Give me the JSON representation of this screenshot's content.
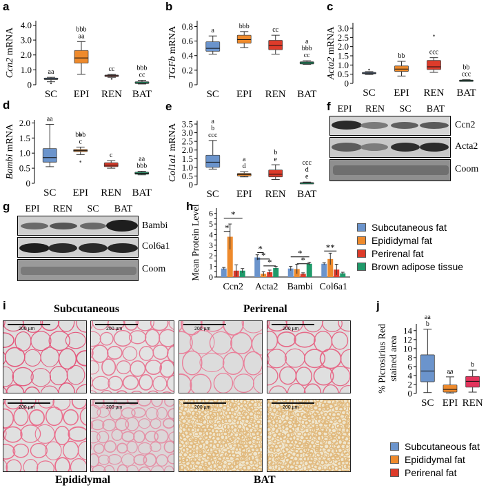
{
  "panel_letters": [
    "a",
    "b",
    "c",
    "d",
    "e",
    "f",
    "g",
    "h",
    "i",
    "j"
  ],
  "colors": {
    "sc": "#6b94cc",
    "epi": "#ee8a2c",
    "ren": "#dd3b2a",
    "bat": "#1f9a6a",
    "ren_j": "#e3345c"
  },
  "legend_h": [
    "Subcutaneous fat",
    "Epididymal fat",
    "Perirenal fat",
    "Brown adipose tissue"
  ],
  "legend_j": [
    "Subcutaneous fat",
    "Epididymal fat",
    "Perirenal fat"
  ],
  "blot_f": {
    "lanes": [
      "EPI",
      "REN",
      "SC",
      "BAT"
    ],
    "rows": [
      "Ccn2",
      "Acta2",
      "Coom"
    ]
  },
  "blot_g": {
    "lanes": [
      "EPI",
      "REN",
      "SC",
      "BAT"
    ],
    "rows": [
      "Bambi",
      "Col6a1",
      "Coom"
    ]
  },
  "histology": {
    "subcutaneous": "Subcutaneous",
    "perirenal": "Perirenal",
    "epididymal": "Epididymal",
    "bat": "BAT",
    "scale": "200 µm"
  },
  "chart_data": [
    {
      "id": "a",
      "type": "box",
      "ylabel_gene": "Ccn2",
      "ylabel_suffix": " mRNA",
      "categories": [
        "SC",
        "EPI",
        "REN",
        "BAT"
      ],
      "yticks": [
        0,
        1.0,
        2.0,
        3.0,
        4.0
      ],
      "tick_labels": [
        "0",
        "1.0",
        "2.0",
        "3.0",
        "4.0"
      ],
      "ylim": [
        0,
        4.3
      ],
      "boxes": [
        {
          "whislo": 0.2,
          "q1": 0.35,
          "med": 0.4,
          "q3": 0.45,
          "whishi": 0.5,
          "fliers": [
            0.1
          ]
        },
        {
          "whislo": 0.7,
          "q1": 1.45,
          "med": 1.8,
          "q3": 2.3,
          "whishi": 2.9,
          "fliers": []
        },
        {
          "whislo": 0.5,
          "q1": 0.55,
          "med": 0.6,
          "q3": 0.65,
          "whishi": 0.7,
          "fliers": [
            0.4
          ]
        },
        {
          "whislo": 0.05,
          "q1": 0.08,
          "med": 0.12,
          "q3": 0.2,
          "whishi": 0.3,
          "fliers": []
        }
      ],
      "annotations": [
        [
          "aa"
        ],
        [
          "bbb",
          "aa"
        ],
        [
          "cc"
        ],
        [
          "bbb",
          "cc"
        ]
      ]
    },
    {
      "id": "b",
      "type": "box",
      "ylabel_gene": "TGFb",
      "ylabel_suffix": " mRNA",
      "categories": [
        "SC",
        "EPI",
        "REN",
        "BAT"
      ],
      "yticks": [
        0,
        0.2,
        0.4,
        0.6,
        0.8
      ],
      "tick_labels": [
        "0",
        "0.2",
        "0.4",
        "0.6",
        "0.8"
      ],
      "ylim": [
        0,
        0.88
      ],
      "boxes": [
        {
          "whislo": 0.42,
          "q1": 0.46,
          "med": 0.5,
          "q3": 0.59,
          "whishi": 0.67,
          "fliers": []
        },
        {
          "whislo": 0.51,
          "q1": 0.57,
          "med": 0.62,
          "q3": 0.68,
          "whishi": 0.73,
          "fliers": []
        },
        {
          "whislo": 0.42,
          "q1": 0.48,
          "med": 0.54,
          "q3": 0.61,
          "whishi": 0.68,
          "fliers": []
        },
        {
          "whislo": 0.28,
          "q1": 0.285,
          "med": 0.3,
          "q3": 0.315,
          "whishi": 0.33,
          "fliers": []
        }
      ],
      "annotations": [
        [
          "a"
        ],
        [
          "bbb"
        ],
        [
          "cc"
        ],
        [
          "a",
          "bbb",
          "cc"
        ]
      ]
    },
    {
      "id": "c",
      "type": "box",
      "ylabel_gene": "Acta2",
      "ylabel_suffix": " mRNA",
      "categories": [
        "SC",
        "EPI",
        "REN",
        "BAT"
      ],
      "yticks": [
        0,
        0.5,
        1.0,
        1.5,
        2.0,
        2.5,
        3.0
      ],
      "tick_labels": [
        "0",
        "0.5",
        "1.0",
        "1.5",
        "2.0",
        "2.5",
        "3.0"
      ],
      "ylim": [
        0,
        3.3
      ],
      "boxes": [
        {
          "whislo": 0.48,
          "q1": 0.52,
          "med": 0.56,
          "q3": 0.6,
          "whishi": 0.64,
          "fliers": [
            0.75
          ]
        },
        {
          "whislo": 0.4,
          "q1": 0.65,
          "med": 0.78,
          "q3": 0.95,
          "whishi": 1.2,
          "fliers": []
        },
        {
          "whislo": 0.6,
          "q1": 0.75,
          "med": 0.9,
          "q3": 1.25,
          "whishi": 1.4,
          "fliers": [
            2.6
          ]
        },
        {
          "whislo": 0.12,
          "q1": 0.14,
          "med": 0.16,
          "q3": 0.18,
          "whishi": 0.2,
          "fliers": []
        }
      ],
      "annotations": [
        [],
        [
          "bb"
        ],
        [
          "ccc"
        ],
        [
          "bb",
          "ccc"
        ]
      ]
    },
    {
      "id": "d",
      "type": "box",
      "ylabel_gene": "Bambi",
      "ylabel_suffix": " mRNA",
      "categories": [
        "SC",
        "EPI",
        "REN",
        "BAT"
      ],
      "yticks": [
        0,
        0.5,
        1.0,
        1.5,
        2.0
      ],
      "tick_labels": [
        "0",
        "0.5",
        "1.0",
        "1.5",
        "2.0"
      ],
      "ylim": [
        0,
        2.1
      ],
      "boxes": [
        {
          "whislo": 0.55,
          "q1": 0.7,
          "med": 0.85,
          "q3": 1.15,
          "whishi": 1.95,
          "fliers": []
        },
        {
          "whislo": 0.95,
          "q1": 1.05,
          "med": 1.08,
          "q3": 1.12,
          "whishi": 1.2,
          "fliers": [
            0.72,
            1.6
          ]
        },
        {
          "whislo": 0.5,
          "q1": 0.55,
          "med": 0.6,
          "q3": 0.68,
          "whishi": 0.75,
          "fliers": []
        },
        {
          "whislo": 0.28,
          "q1": 0.3,
          "med": 0.33,
          "q3": 0.37,
          "whishi": 0.4,
          "fliers": []
        }
      ],
      "annotations": [
        [
          "aa"
        ],
        [
          "bbb",
          "c"
        ],
        [
          "c"
        ],
        [
          "aa",
          "bbb"
        ]
      ]
    },
    {
      "id": "e",
      "type": "box",
      "ylabel_gene": "Col1a1",
      "ylabel_suffix": " mRNA",
      "categories": [
        "SC",
        "EPI",
        "REN",
        "BAT"
      ],
      "yticks": [
        0,
        0.5,
        1.0,
        1.5,
        2.0,
        2.5,
        3.0,
        3.5
      ],
      "tick_labels": [
        "0",
        "0.5",
        "1.0",
        "1.5",
        "2.0",
        "2.5",
        "3.0",
        "3.5"
      ],
      "ylim": [
        0,
        3.7
      ],
      "boxes": [
        {
          "whislo": 0.9,
          "q1": 1.0,
          "med": 1.3,
          "q3": 1.7,
          "whishi": 2.55,
          "fliers": []
        },
        {
          "whislo": 0.45,
          "q1": 0.5,
          "med": 0.58,
          "q3": 0.65,
          "whishi": 0.75,
          "fliers": []
        },
        {
          "whislo": 0.3,
          "q1": 0.45,
          "med": 0.6,
          "q3": 0.85,
          "whishi": 1.15,
          "fliers": []
        },
        {
          "whislo": 0.06,
          "q1": 0.08,
          "med": 0.1,
          "q3": 0.12,
          "whishi": 0.15,
          "fliers": []
        }
      ],
      "annotations": [
        [
          "a",
          "b",
          "ccc"
        ],
        [
          "a",
          "d"
        ],
        [
          "b",
          "e"
        ],
        [
          "ccc",
          "d",
          "e"
        ]
      ]
    },
    {
      "id": "h",
      "type": "bar",
      "title": "",
      "ylabel": "Mean Protein Level",
      "categories": [
        "Ccn2",
        "Acta2",
        "Bambi",
        "Col6a1"
      ],
      "yticks": [
        0,
        0.5,
        1,
        1.5,
        2,
        2.5,
        3,
        3.5,
        4,
        4.5,
        5,
        5.5,
        6
      ],
      "tick_labels": [
        "0",
        "",
        "1",
        "",
        "2",
        "",
        "3",
        "",
        "4",
        "",
        "5",
        "",
        "6"
      ],
      "ylim": [
        0,
        6.5
      ],
      "series": [
        {
          "name": "Subcutaneous fat",
          "values": [
            0.8,
            1.85,
            0.8,
            1.25
          ],
          "errors": [
            0.1,
            0.25,
            0.2,
            0.1
          ]
        },
        {
          "name": "Epididymal fat",
          "values": [
            3.8,
            0.3,
            0.75,
            1.7
          ],
          "errors": [
            1.2,
            0.2,
            0.45,
            0.55
          ]
        },
        {
          "name": "Perirenal fat",
          "values": [
            0.6,
            0.45,
            0.3,
            0.7
          ],
          "errors": [
            0.55,
            0.2,
            0.1,
            0.5
          ]
        },
        {
          "name": "Brown adipose tissue",
          "values": [
            0.6,
            0.85,
            1.25,
            0.35
          ],
          "errors": [
            0.2,
            0.15,
            0.15,
            0.1
          ]
        }
      ],
      "significance": [
        "*",
        "*",
        "*",
        "*",
        "*",
        "*",
        "*",
        "**"
      ]
    },
    {
      "id": "j",
      "type": "box",
      "ylabel": "% Picrosirius Red stained area",
      "ylabel_lines": [
        "% Picrosirius Red",
        "stained area"
      ],
      "categories": [
        "SC",
        "EPI",
        "REN"
      ],
      "yticks": [
        0,
        2,
        4,
        6,
        8,
        10,
        12,
        14
      ],
      "tick_labels": [
        "0",
        "2",
        "4",
        "6",
        "8",
        "10",
        "12",
        "14"
      ],
      "ylim": [
        0,
        15.5
      ],
      "boxes": [
        {
          "whislo": 0.2,
          "q1": 2.6,
          "med": 5.0,
          "q3": 8.6,
          "whishi": 14.3,
          "fliers": []
        },
        {
          "whislo": 0.1,
          "q1": 0.3,
          "med": 0.9,
          "q3": 1.9,
          "whishi": 3.7,
          "fliers": [
            4.5
          ]
        },
        {
          "whislo": 0.3,
          "q1": 1.4,
          "med": 2.7,
          "q3": 3.8,
          "whishi": 5.2,
          "fliers": []
        }
      ],
      "annotations": [
        [
          "aa",
          "b"
        ],
        [
          "aa"
        ],
        [
          "b"
        ]
      ]
    }
  ]
}
